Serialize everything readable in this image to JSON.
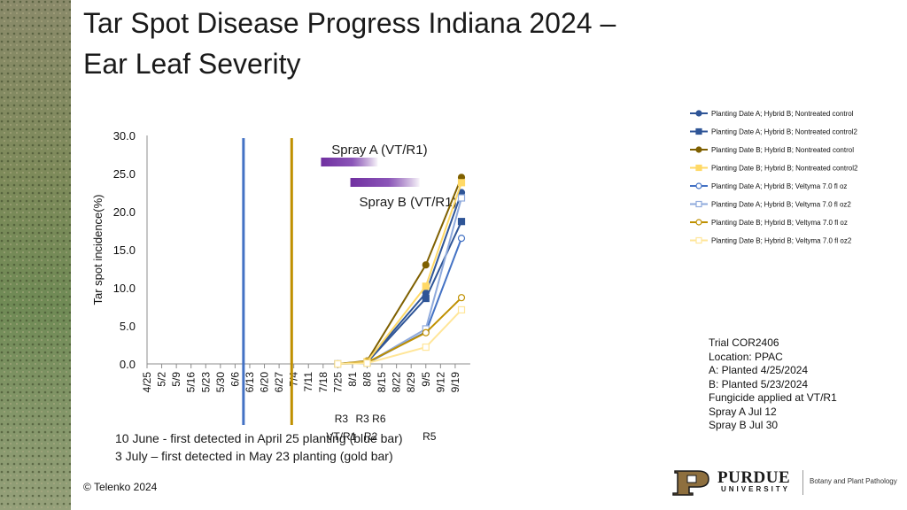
{
  "slide": {
    "title_line1": "Tar Spot Disease Progress Indiana 2024  –",
    "title_line2": "Ear Leaf Severity",
    "notes": [
      "10 June - first detected in April 25 planting (blue bar)",
      "3 July – first detected in May 23 planting (gold bar)"
    ],
    "trial_info": [
      "Trial COR2406",
      "Location: PPAC",
      "A: Planted 4/25/2024",
      "B: Planted 5/23/2024",
      "Fungicide applied at VT/R1",
      "Spray A Jul 12",
      "Spray B Jul 30"
    ],
    "copyright": "© Telenko 2024",
    "logo": {
      "name": "PURDUE",
      "subtitle": "UNIVERSITY",
      "dept": "Botany and Plant Pathology"
    }
  },
  "colors": {
    "blue_bar": "#4472c4",
    "gold_bar": "#bf9000",
    "spray_purple": "#7030a0"
  },
  "chart_data": {
    "type": "line",
    "ylabel": "Tar spot incidence(%)",
    "ylim": [
      0,
      30
    ],
    "yticks": [
      "0.0",
      "5.0",
      "10.0",
      "15.0",
      "20.0",
      "25.0",
      "30.0"
    ],
    "x_tick_labels": [
      "4/25",
      "5/2",
      "5/9",
      "5/16",
      "5/23",
      "5/30",
      "6/6",
      "6/13",
      "6/20",
      "6/27",
      "7/4",
      "7/11",
      "7/18",
      "7/25",
      "8/1",
      "8/8",
      "8/15",
      "8/22",
      "8/29",
      "9/5",
      "9/12",
      "9/19"
    ],
    "grid": false,
    "legend": "right",
    "vertical_markers": [
      {
        "date": "6/10",
        "color": "#4472c4"
      },
      {
        "date": "7/3",
        "color": "#bf9000"
      }
    ],
    "spray_bands": [
      {
        "label": "Spray A (VT/R1)",
        "start": "7/17",
        "end": "8/13"
      },
      {
        "label": "Spray B (VT/R1)",
        "start": "7/31",
        "end": "9/2"
      }
    ],
    "growth_stages": [
      {
        "date": "7/25",
        "line1": "R3",
        "line2": "VT/R1"
      },
      {
        "date": "8/8",
        "line1": "R3 R6",
        "line2": "R2"
      },
      {
        "date": "9/5",
        "line1": "",
        "line2": "R5"
      }
    ],
    "x_dates": [
      "7/25",
      "8/8",
      "9/5",
      "9/22"
    ],
    "series": [
      {
        "name": "Planting Date A; Hybrid B; Nontreated control",
        "color": "#2f5597",
        "marker": "circle",
        "fill": true,
        "values": [
          0,
          0.3,
          9.3,
          22.5
        ]
      },
      {
        "name": "Planting Date A; Hybrid B; Nontreated control2",
        "color": "#2f5597",
        "marker": "square",
        "fill": true,
        "values": [
          0,
          0.2,
          8.6,
          18.7
        ]
      },
      {
        "name": "Planting Date B; Hybrid B; Nontreated control",
        "color": "#7f6000",
        "marker": "circle",
        "fill": true,
        "values": [
          0,
          0.4,
          13.0,
          24.5
        ]
      },
      {
        "name": "Planting Date B; Hybrid B; Nontreated control2",
        "color": "#ffd966",
        "marker": "square",
        "fill": true,
        "values": [
          0,
          0.3,
          10.2,
          23.8
        ]
      },
      {
        "name": "Planting Date A; Hybrid B; Veltyma 7.0 fl oz",
        "color": "#4472c4",
        "marker": "circle",
        "fill": false,
        "values": [
          0,
          0.1,
          4.2,
          16.5
        ]
      },
      {
        "name": "Planting Date A; Hybrid B; Veltyma 7.0 fl oz2",
        "color": "#8faadc",
        "marker": "square",
        "fill": false,
        "values": [
          0,
          0.1,
          4.6,
          21.8
        ]
      },
      {
        "name": "Planting Date B; Hybrid B; Veltyma 7.0 fl oz",
        "color": "#bf9000",
        "marker": "circle",
        "fill": false,
        "values": [
          0,
          0.2,
          4.1,
          8.7
        ]
      },
      {
        "name": "Planting Date B; Hybrid B; Veltyma 7.0 fl oz2",
        "color": "#ffe699",
        "marker": "square",
        "fill": false,
        "values": [
          0,
          0.1,
          2.2,
          7.1
        ]
      }
    ]
  }
}
